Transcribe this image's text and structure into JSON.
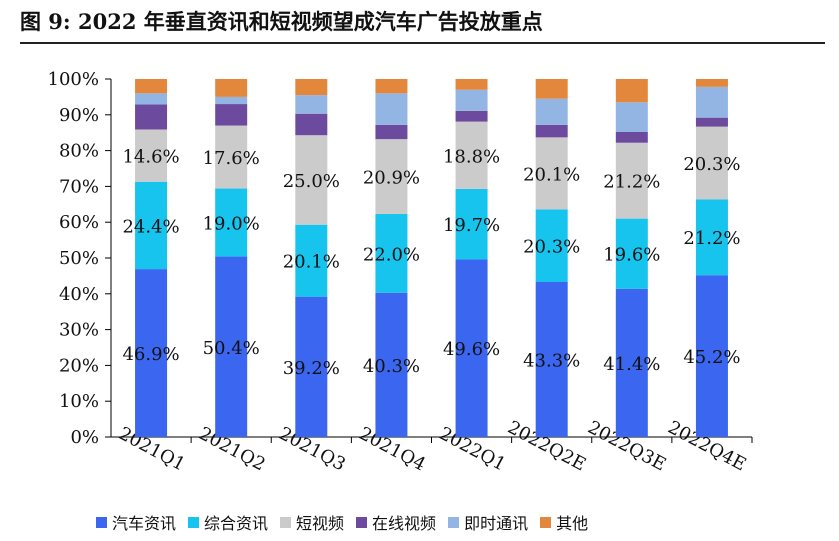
{
  "header": {
    "title": "图 9:  2022 年垂直资讯和短视频望成汽车广告投放重点"
  },
  "chart_data": {
    "type": "bar",
    "stacked": true,
    "categories": [
      "2021Q1",
      "2021Q2",
      "2021Q3",
      "2021Q4",
      "2022Q1",
      "2022Q2E",
      "2022Q3E",
      "2022Q4E"
    ],
    "series": [
      {
        "name": "汽车资讯",
        "color": "#3a66f0",
        "values": [
          46.9,
          50.4,
          39.2,
          40.3,
          49.6,
          43.3,
          41.4,
          45.2
        ],
        "labels": [
          "46.9%",
          "50.4%",
          "39.2%",
          "40.3%",
          "49.6%",
          "43.3%",
          "41.4%",
          "45.2%"
        ]
      },
      {
        "name": "综合资讯",
        "color": "#16c4ee",
        "values": [
          24.4,
          19.0,
          20.1,
          22.0,
          19.7,
          20.3,
          19.6,
          21.2
        ],
        "labels": [
          "24.4%",
          "19.0%",
          "20.1%",
          "22.0%",
          "19.7%",
          "20.3%",
          "19.6%",
          "21.2%"
        ]
      },
      {
        "name": "短视频",
        "color": "#cbcbcb",
        "values": [
          14.6,
          17.6,
          25.0,
          20.9,
          18.8,
          20.1,
          21.2,
          20.3
        ],
        "labels": [
          "14.6%",
          "17.6%",
          "25.0%",
          "20.9%",
          "18.8%",
          "20.1%",
          "21.2%",
          "20.3%"
        ]
      },
      {
        "name": "在线视频",
        "color": "#6c4a9e",
        "values": [
          7.0,
          6.0,
          6.0,
          4.0,
          3.0,
          3.5,
          3.0,
          2.5
        ]
      },
      {
        "name": "即时通讯",
        "color": "#92b5e3",
        "values": [
          3.1,
          2.0,
          5.2,
          8.8,
          5.9,
          7.3,
          8.3,
          8.6
        ]
      },
      {
        "name": "其他",
        "color": "#e3873c",
        "values": [
          4.0,
          5.0,
          4.5,
          4.0,
          4.0,
          5.5,
          6.5,
          2.2
        ]
      }
    ],
    "ylim": [
      0,
      100
    ],
    "yticks": [
      "0%",
      "10%",
      "20%",
      "30%",
      "40%",
      "50%",
      "60%",
      "70%",
      "80%",
      "90%",
      "100%"
    ],
    "grid": false,
    "legend_position": "bottom"
  }
}
